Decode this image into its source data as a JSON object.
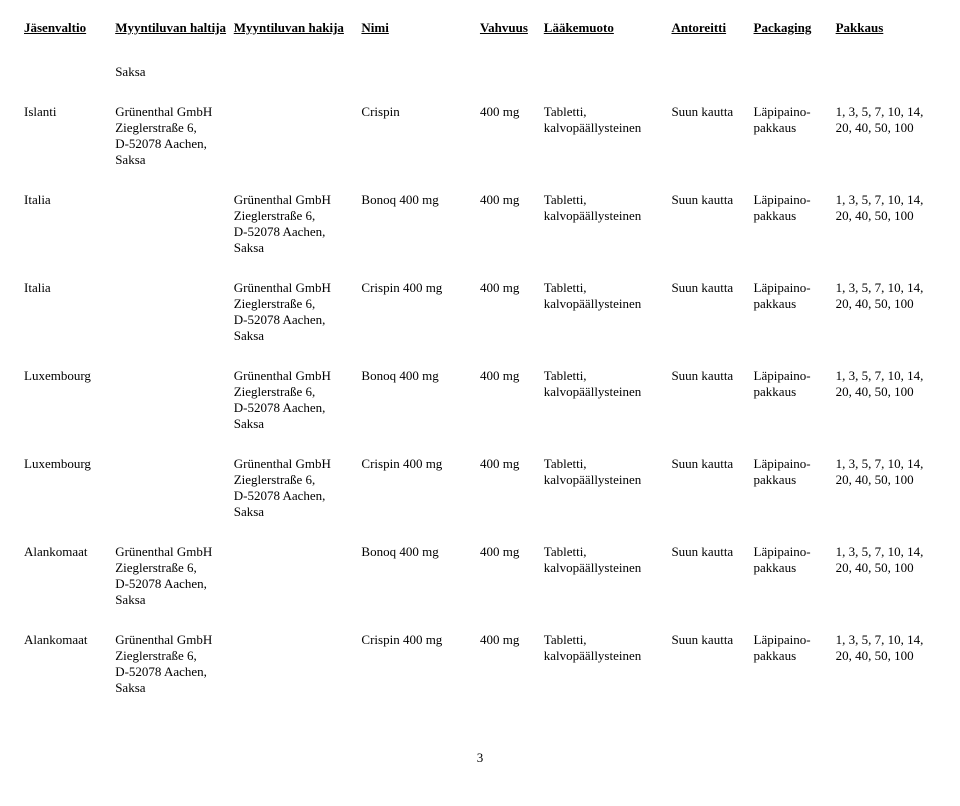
{
  "headers": {
    "jasenvaltio": "Jäsenvaltio",
    "haltija": "Myyntiluvan haltija",
    "hakija": "Myyntiluvan hakija",
    "nimi": "Nimi",
    "vahvuus": "Vahvuus",
    "laakemuoto": "Lääkemuoto",
    "antoreitti": "Antoreitti",
    "packaging": "Packaging",
    "pakkaus": "Pakkaus"
  },
  "topRow": {
    "haltija_pre": "Saksa"
  },
  "rows": [
    {
      "jasenvaltio": "Islanti",
      "haltija": "Grünenthal GmbH\nZieglerstraße 6,\nD-52078 Aachen,\nSaksa",
      "hakija": "",
      "nimi": "Crispin",
      "vahvuus": "400 mg",
      "laakemuoto": "Tabletti,\nkalvopäällysteinen",
      "antoreitti": "Suun kautta",
      "packaging": "Läpipaino-\npakkaus",
      "pakkaus": "1, 3, 5, 7, 10, 14,\n20, 40, 50, 100"
    },
    {
      "jasenvaltio": "Italia",
      "haltija": "",
      "hakija": "Grünenthal GmbH\nZieglerstraße 6,\nD-52078 Aachen,\nSaksa",
      "nimi": "Bonoq 400 mg",
      "vahvuus": "400 mg",
      "laakemuoto": "Tabletti,\nkalvopäällysteinen",
      "antoreitti": "Suun kautta",
      "packaging": "Läpipaino-\npakkaus",
      "pakkaus": "1, 3, 5, 7, 10, 14,\n20, 40, 50, 100"
    },
    {
      "jasenvaltio": "Italia",
      "haltija": "",
      "hakija": "Grünenthal GmbH\nZieglerstraße 6,\nD-52078 Aachen,\nSaksa",
      "nimi": "Crispin 400 mg",
      "vahvuus": "400 mg",
      "laakemuoto": "Tabletti,\nkalvopäällysteinen",
      "antoreitti": "Suun kautta",
      "packaging": "Läpipaino-\npakkaus",
      "pakkaus": "1, 3, 5, 7, 10, 14,\n20, 40, 50, 100"
    },
    {
      "jasenvaltio": "Luxembourg",
      "haltija": "",
      "hakija": "Grünenthal GmbH\nZieglerstraße 6,\nD-52078 Aachen,\nSaksa",
      "nimi": "Bonoq 400 mg",
      "vahvuus": "400 mg",
      "laakemuoto": "Tabletti,\nkalvopäällysteinen",
      "antoreitti": "Suun kautta",
      "packaging": "Läpipaino-\npakkaus",
      "pakkaus": "1, 3, 5, 7, 10, 14,\n20, 40, 50, 100"
    },
    {
      "jasenvaltio": "Luxembourg",
      "haltija": "",
      "hakija": "Grünenthal GmbH\nZieglerstraße 6,\nD-52078 Aachen,\nSaksa",
      "nimi": "Crispin 400 mg",
      "vahvuus": "400 mg",
      "laakemuoto": "Tabletti,\nkalvopäällysteinen",
      "antoreitti": "Suun kautta",
      "packaging": "Läpipaino-\npakkaus",
      "pakkaus": "1, 3, 5, 7, 10, 14,\n20, 40, 50, 100"
    },
    {
      "jasenvaltio": "Alankomaat",
      "haltija": "Grünenthal GmbH\nZieglerstraße 6,\nD-52078 Aachen,\nSaksa",
      "hakija": "",
      "nimi": "Bonoq 400 mg",
      "vahvuus": "400 mg",
      "laakemuoto": "Tabletti,\nkalvopäällysteinen",
      "antoreitti": "Suun kautta",
      "packaging": "Läpipaino-\npakkaus",
      "pakkaus": "1, 3, 5, 7, 10, 14,\n20, 40, 50, 100"
    },
    {
      "jasenvaltio": "Alankomaat",
      "haltija": "Grünenthal GmbH\nZieglerstraße 6,\nD-52078 Aachen,\nSaksa",
      "hakija": "",
      "nimi": "Crispin 400 mg",
      "vahvuus": "400 mg",
      "laakemuoto": "Tabletti,\nkalvopäällysteinen",
      "antoreitti": "Suun kautta",
      "packaging": "Läpipaino-\npakkaus",
      "pakkaus": "1, 3, 5, 7, 10, 14,\n20, 40, 50, 100"
    }
  ],
  "pageNumber": "3"
}
